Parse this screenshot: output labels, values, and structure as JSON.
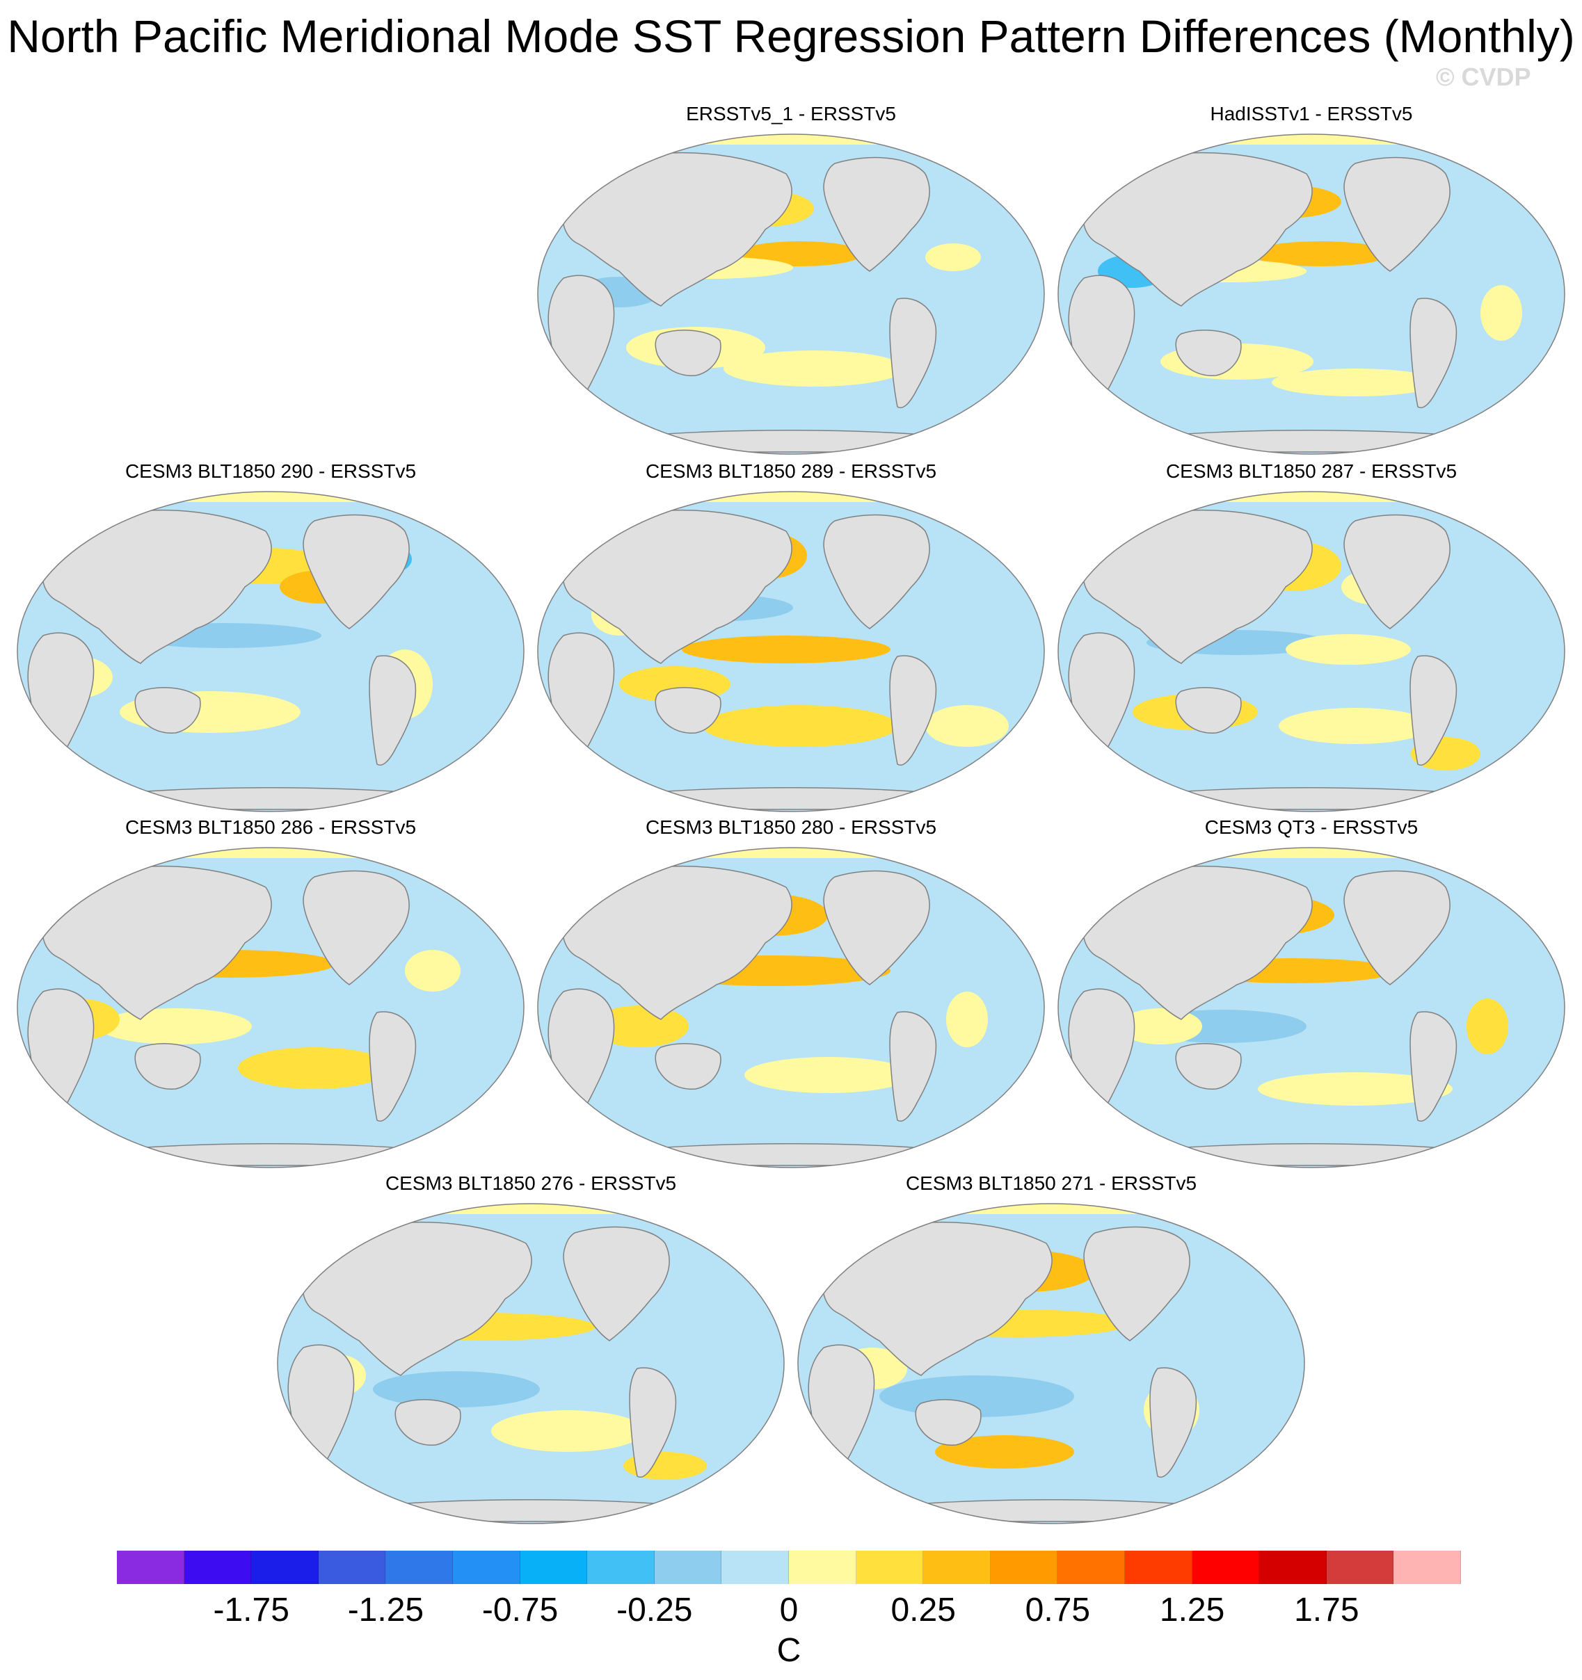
{
  "title": "North Pacific Meridional Mode SST Regression Pattern Differences (Monthly)",
  "watermark": "© CVDP",
  "panels": [
    {
      "label": "ERSSTv5_1 - ERSSTv5"
    },
    {
      "label": "HadISSTv1 - ERSSTv5"
    },
    {
      "label": "CESM3 BLT1850 290 - ERSSTv5"
    },
    {
      "label": "CESM3 BLT1850 289 - ERSSTv5"
    },
    {
      "label": "CESM3 BLT1850 287 - ERSSTv5"
    },
    {
      "label": "CESM3 BLT1850 286 - ERSSTv5"
    },
    {
      "label": "CESM3 BLT1850 280 - ERSSTv5"
    },
    {
      "label": "CESM3 QT3 - ERSSTv5"
    },
    {
      "label": "CESM3 BLT1850 276 - ERSSTv5"
    },
    {
      "label": "CESM3 BLT1850 271 - ERSSTv5"
    }
  ],
  "colorbar": {
    "units": "C",
    "colors": [
      "#8a2be2",
      "#3d0cf0",
      "#1a1ee8",
      "#3a5ae0",
      "#2f78ea",
      "#2390f5",
      "#08b0f8",
      "#40c0f4",
      "#8fcdee",
      "#b8e2f6",
      "#fffaa0",
      "#ffe03c",
      "#ffbe14",
      "#ff9a00",
      "#ff7200",
      "#ff3c00",
      "#ff0000",
      "#d40000",
      "#d43c3c",
      "#ffb4b4"
    ],
    "labels": [
      "-1.75",
      "-1.25",
      "-0.75",
      "-0.25",
      "0",
      "0.25",
      "0.75",
      "1.25",
      "1.75"
    ]
  },
  "map_colors": {
    "ocean": "#b8e2f6",
    "land": "#e0e0e0",
    "warm": "#fffaa0",
    "warm2": "#ffe03c",
    "warm3": "#ffbe14",
    "cool": "#8fcdee",
    "cool2": "#40c0f4",
    "coast": "#808080"
  }
}
